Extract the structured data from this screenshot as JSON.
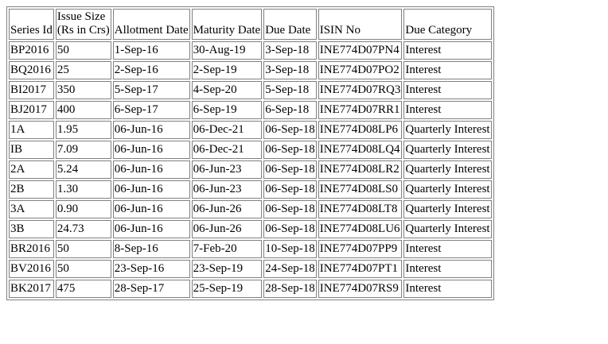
{
  "table": {
    "headers": [
      {
        "key": "series_id",
        "lines": [
          "Series Id"
        ]
      },
      {
        "key": "issue_size",
        "lines": [
          "Issue Size",
          "(Rs in Crs)"
        ]
      },
      {
        "key": "allotment_date",
        "lines": [
          "Allotment Date"
        ]
      },
      {
        "key": "maturity_date",
        "lines": [
          "Maturity Date"
        ]
      },
      {
        "key": "due_date",
        "lines": [
          "Due Date"
        ]
      },
      {
        "key": "isin_no",
        "lines": [
          "ISIN No"
        ]
      },
      {
        "key": "due_category",
        "lines": [
          "Due Category"
        ]
      }
    ],
    "rows": [
      [
        "BP2016",
        "50",
        "1-Sep-16",
        "30-Aug-19",
        "3-Sep-18",
        "INE774D07PN4",
        "Interest"
      ],
      [
        "BQ2016",
        "25",
        "2-Sep-16",
        "2-Sep-19",
        "3-Sep-18",
        "INE774D07PO2",
        "Interest"
      ],
      [
        "BI2017",
        "350",
        "5-Sep-17",
        "4-Sep-20",
        "5-Sep-18",
        "INE774D07RQ3",
        "Interest"
      ],
      [
        "BJ2017",
        "400",
        "6-Sep-17",
        "6-Sep-19",
        "6-Sep-18",
        "INE774D07RR1",
        "Interest"
      ],
      [
        "1A",
        "1.95",
        "06-Jun-16",
        "06-Dec-21",
        "06-Sep-18",
        "INE774D08LP6",
        "Quarterly Interest"
      ],
      [
        "IB",
        "7.09",
        "06-Jun-16",
        "06-Dec-21",
        "06-Sep-18",
        "INE774D08LQ4",
        "Quarterly Interest"
      ],
      [
        "2A",
        "5.24",
        "06-Jun-16",
        "06-Jun-23",
        "06-Sep-18",
        "INE774D08LR2",
        "Quarterly Interest"
      ],
      [
        "2B",
        "1.30",
        "06-Jun-16",
        "06-Jun-23",
        "06-Sep-18",
        "INE774D08LS0",
        "Quarterly Interest"
      ],
      [
        "3A",
        "0.90",
        "06-Jun-16",
        "06-Jun-26",
        "06-Sep-18",
        "INE774D08LT8",
        "Quarterly Interest"
      ],
      [
        "3B",
        "24.73",
        "06-Jun-16",
        "06-Jun-26",
        "06-Sep-18",
        "INE774D08LU6",
        "Quarterly Interest"
      ],
      [
        "BR2016",
        "50",
        "8-Sep-16",
        "7-Feb-20",
        "10-Sep-18",
        "INE774D07PP9",
        "Interest"
      ],
      [
        "BV2016",
        "50",
        "23-Sep-16",
        "23-Sep-19",
        "24-Sep-18",
        "INE774D07PT1",
        "Interest"
      ],
      [
        "BK2017",
        "475",
        "28-Sep-17",
        "25-Sep-19",
        "28-Sep-18",
        "INE774D07RS9",
        "Interest"
      ]
    ]
  }
}
